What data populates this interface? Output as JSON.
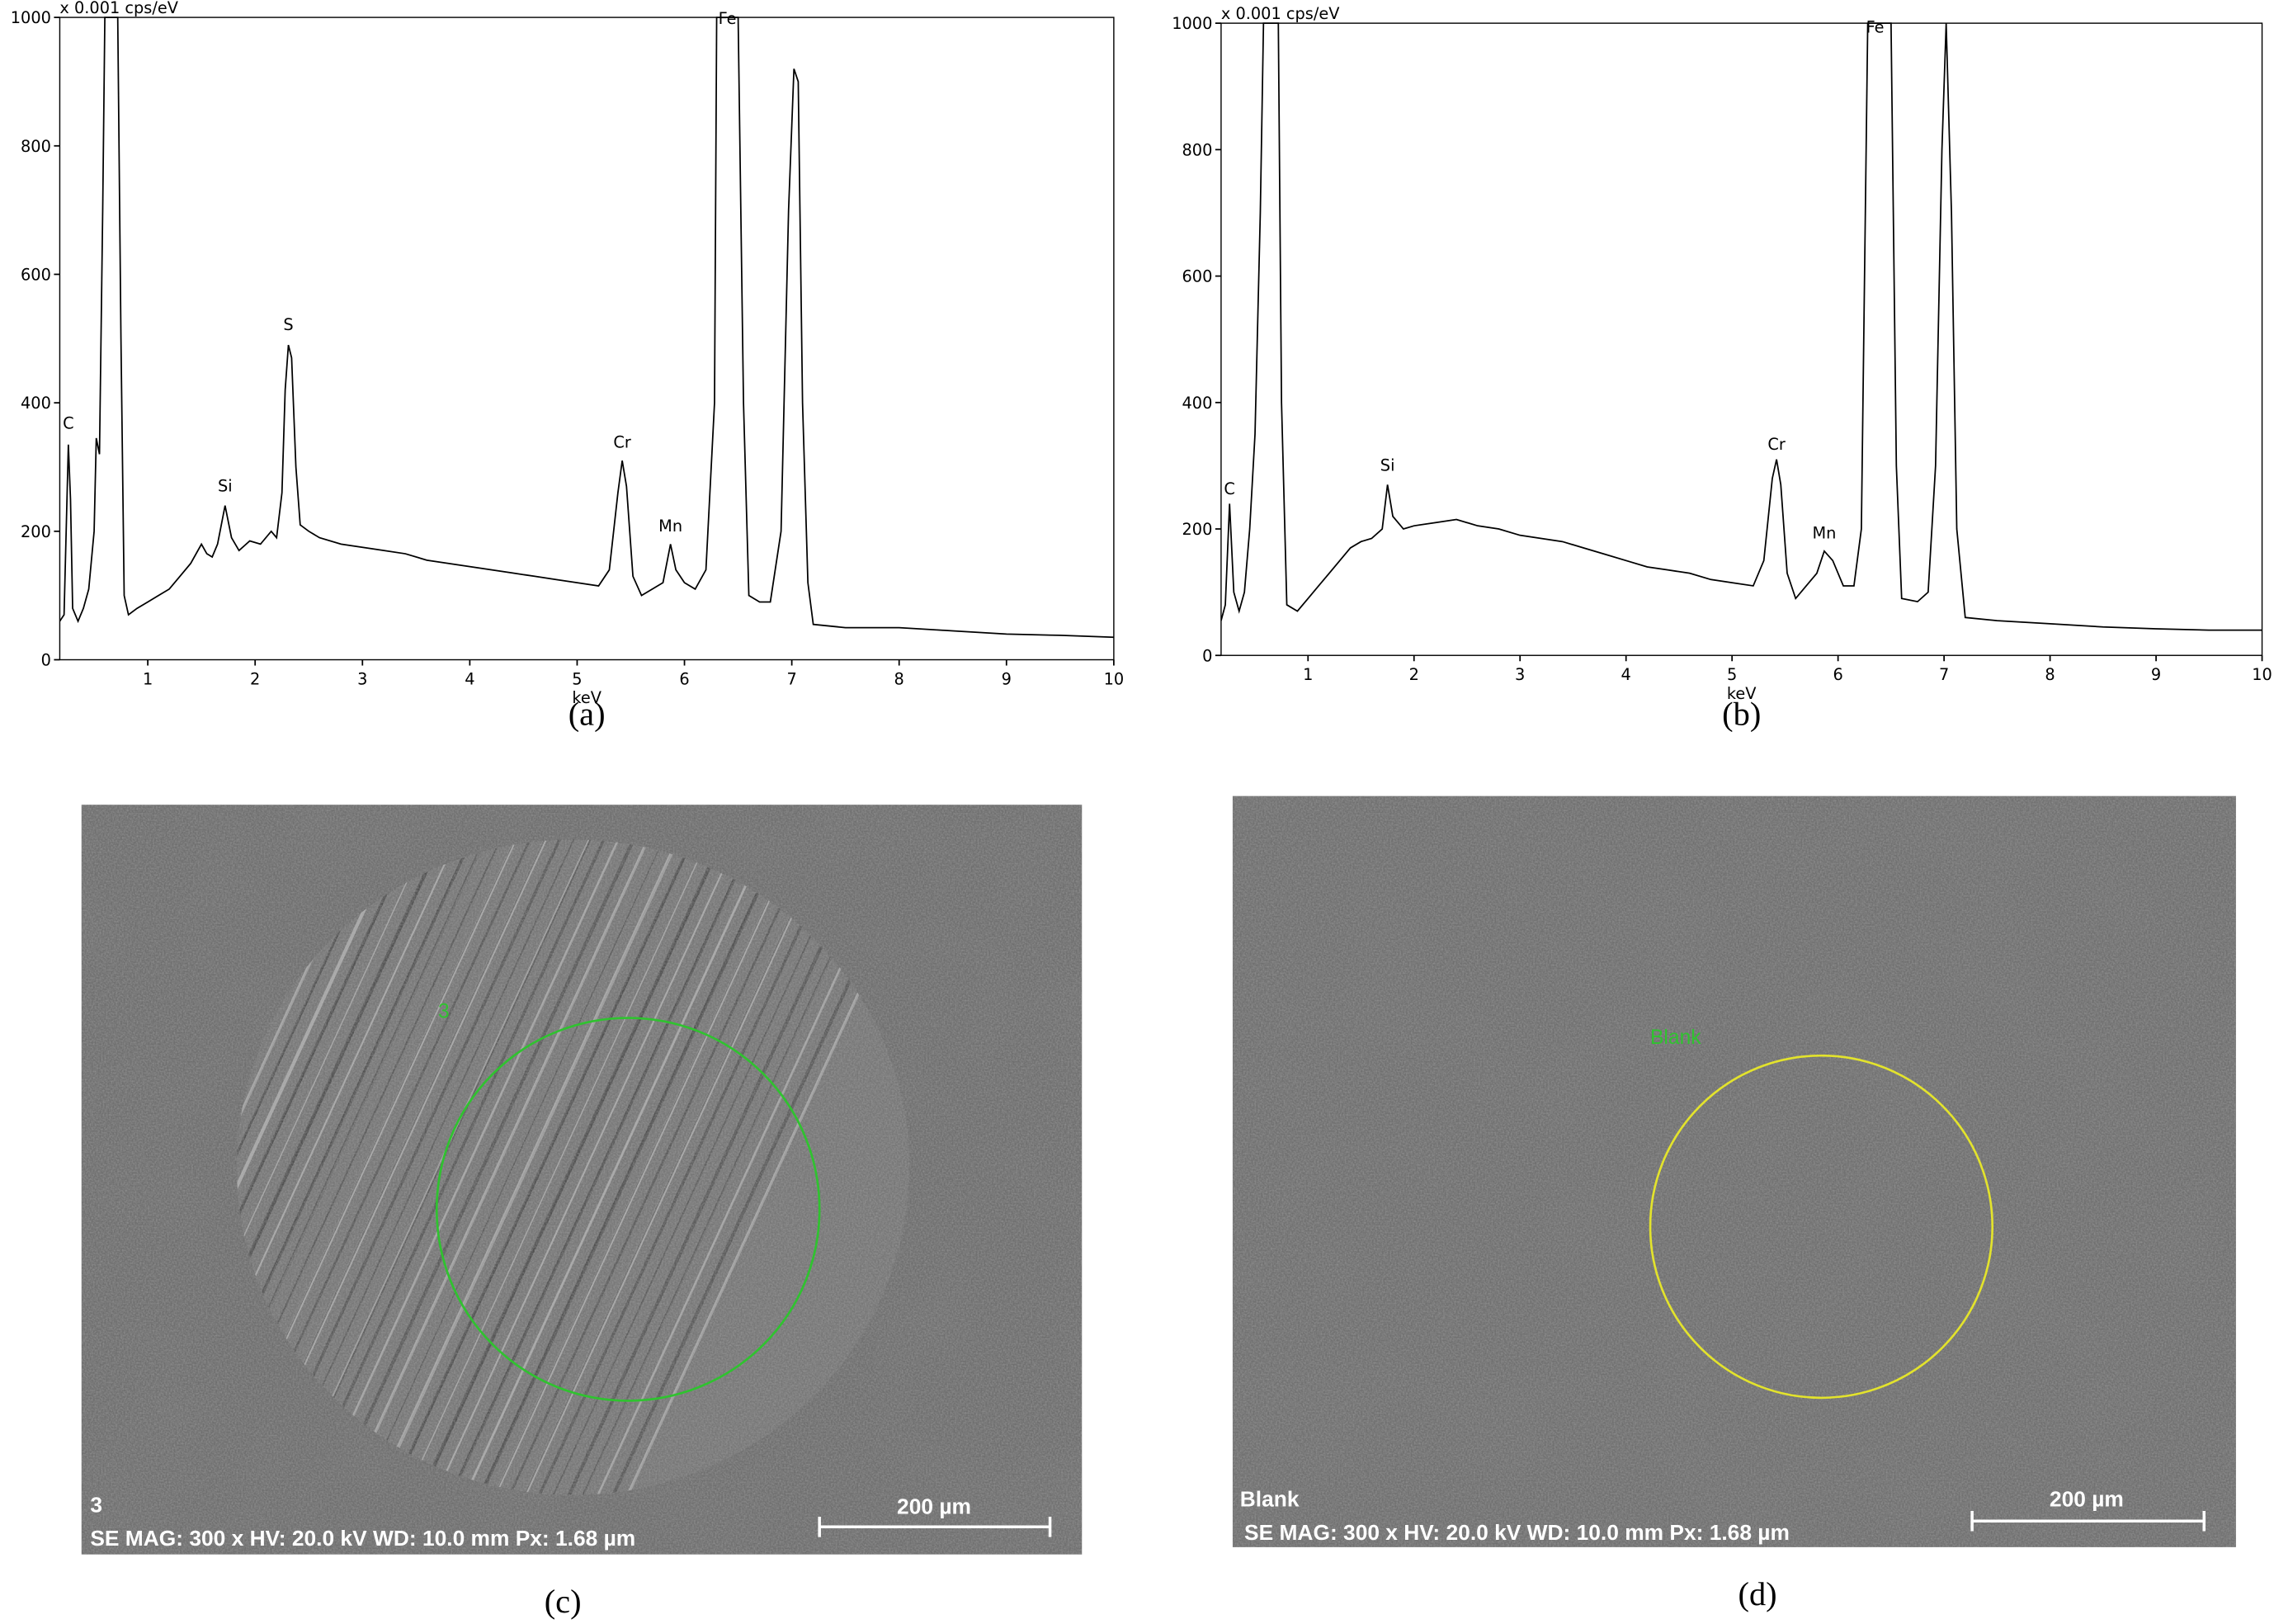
{
  "chart_data": [
    {
      "type": "line",
      "y_unit_label": "x 0.001 cps/eV",
      "x_label": "keV",
      "caption": "(a)",
      "xlim": [
        0.18,
        10
      ],
      "ylim": [
        0,
        1000
      ],
      "xticks": [
        1,
        2,
        3,
        4,
        5,
        6,
        7,
        8,
        9,
        10
      ],
      "yticks": [
        0,
        200,
        400,
        600,
        800,
        1000
      ],
      "x": [
        0.18,
        0.22,
        0.26,
        0.28,
        0.3,
        0.35,
        0.4,
        0.45,
        0.5,
        0.52,
        0.55,
        0.58,
        0.6,
        0.72,
        0.75,
        0.78,
        0.82,
        0.9,
        1.0,
        1.1,
        1.2,
        1.3,
        1.4,
        1.5,
        1.55,
        1.6,
        1.65,
        1.72,
        1.78,
        1.85,
        1.95,
        2.05,
        2.15,
        2.2,
        2.25,
        2.28,
        2.31,
        2.34,
        2.38,
        2.42,
        2.5,
        2.6,
        2.8,
        3.0,
        3.2,
        3.4,
        3.6,
        3.8,
        4.0,
        4.2,
        4.4,
        4.6,
        4.8,
        5.0,
        5.2,
        5.3,
        5.38,
        5.42,
        5.46,
        5.52,
        5.6,
        5.7,
        5.8,
        5.87,
        5.92,
        6.0,
        6.1,
        6.2,
        6.28,
        6.3,
        6.5,
        6.55,
        6.6,
        6.7,
        6.8,
        6.9,
        6.97,
        7.02,
        7.06,
        7.1,
        7.15,
        7.2,
        7.5,
        8.0,
        8.5,
        9.0,
        9.5,
        10.0
      ],
      "series": [
        {
          "color": "#000000",
          "values": [
            60,
            70,
            335,
            250,
            80,
            60,
            80,
            110,
            200,
            345,
            320,
            700,
            1000,
            1000,
            500,
            100,
            70,
            80,
            90,
            100,
            110,
            130,
            150,
            180,
            165,
            160,
            180,
            240,
            190,
            170,
            185,
            180,
            200,
            190,
            260,
            420,
            490,
            470,
            300,
            210,
            200,
            190,
            180,
            175,
            170,
            165,
            155,
            150,
            145,
            140,
            135,
            130,
            125,
            120,
            115,
            140,
            260,
            310,
            270,
            130,
            100,
            110,
            120,
            180,
            140,
            120,
            110,
            140,
            400,
            1000,
            1000,
            400,
            100,
            90,
            90,
            200,
            700,
            920,
            900,
            400,
            120,
            55,
            50,
            50,
            45,
            40,
            38,
            35
          ]
        }
      ],
      "annotations": [
        {
          "text": "C",
          "x": 0.26,
          "y": 360
        },
        {
          "text": "Si",
          "x": 1.72,
          "y": 262
        },
        {
          "text": "S",
          "x": 2.31,
          "y": 513
        },
        {
          "text": "Cr",
          "x": 5.42,
          "y": 330
        },
        {
          "text": "Mn",
          "x": 5.87,
          "y": 200
        },
        {
          "text": "Fe",
          "x": 6.4,
          "y": 990
        }
      ]
    },
    {
      "type": "line",
      "y_unit_label": "x 0.001 cps/eV",
      "x_label": "keV",
      "caption": "(b)",
      "xlim": [
        0.18,
        10
      ],
      "ylim": [
        0,
        1000
      ],
      "xticks": [
        1,
        2,
        3,
        4,
        5,
        6,
        7,
        8,
        9,
        10
      ],
      "yticks": [
        0,
        200,
        400,
        600,
        800,
        1000
      ],
      "x": [
        0.18,
        0.22,
        0.26,
        0.3,
        0.35,
        0.4,
        0.45,
        0.5,
        0.55,
        0.58,
        0.72,
        0.75,
        0.8,
        0.9,
        1.0,
        1.1,
        1.2,
        1.3,
        1.4,
        1.5,
        1.6,
        1.7,
        1.75,
        1.8,
        1.9,
        2.0,
        2.2,
        2.4,
        2.6,
        2.8,
        3.0,
        3.2,
        3.4,
        3.6,
        3.8,
        4.0,
        4.2,
        4.4,
        4.6,
        4.8,
        5.0,
        5.2,
        5.3,
        5.38,
        5.42,
        5.46,
        5.52,
        5.6,
        5.7,
        5.8,
        5.87,
        5.95,
        6.05,
        6.15,
        6.22,
        6.28,
        6.5,
        6.55,
        6.6,
        6.75,
        6.85,
        6.92,
        6.98,
        7.02,
        7.07,
        7.12,
        7.2,
        7.5,
        8.0,
        8.5,
        9.0,
        9.5,
        10.0
      ],
      "series": [
        {
          "color": "#000000",
          "values": [
            55,
            80,
            240,
            100,
            70,
            100,
            200,
            350,
            700,
            1000,
            1000,
            400,
            80,
            70,
            90,
            110,
            130,
            150,
            170,
            180,
            185,
            200,
            270,
            220,
            200,
            205,
            210,
            215,
            205,
            200,
            190,
            185,
            180,
            170,
            160,
            150,
            140,
            135,
            130,
            120,
            115,
            110,
            150,
            280,
            310,
            270,
            130,
            90,
            110,
            130,
            165,
            150,
            110,
            110,
            200,
            1000,
            1000,
            300,
            90,
            85,
            100,
            300,
            800,
            1000,
            700,
            200,
            60,
            55,
            50,
            45,
            42,
            40,
            40
          ]
        }
      ],
      "annotations": [
        {
          "text": "C",
          "x": 0.26,
          "y": 255
        },
        {
          "text": "Si",
          "x": 1.75,
          "y": 292
        },
        {
          "text": "Cr",
          "x": 5.42,
          "y": 325
        },
        {
          "text": "Mn",
          "x": 5.87,
          "y": 185
        },
        {
          "text": "Fe",
          "x": 6.35,
          "y": 985
        }
      ]
    }
  ],
  "images": [
    {
      "caption": "(c)",
      "region_label": "3",
      "info": "SE MAG: 300 x HV: 20.0 kV  WD: 10.0 mm  Px: 1.68 µm",
      "scale_bar": "200 µm"
    },
    {
      "caption": "(d)",
      "region_label": "Blank",
      "info": "SE MAG: 300 x HV: 20.0 kV  WD: 10.0 mm  Px: 1.68 µm",
      "scale_bar": "200 µm"
    }
  ]
}
